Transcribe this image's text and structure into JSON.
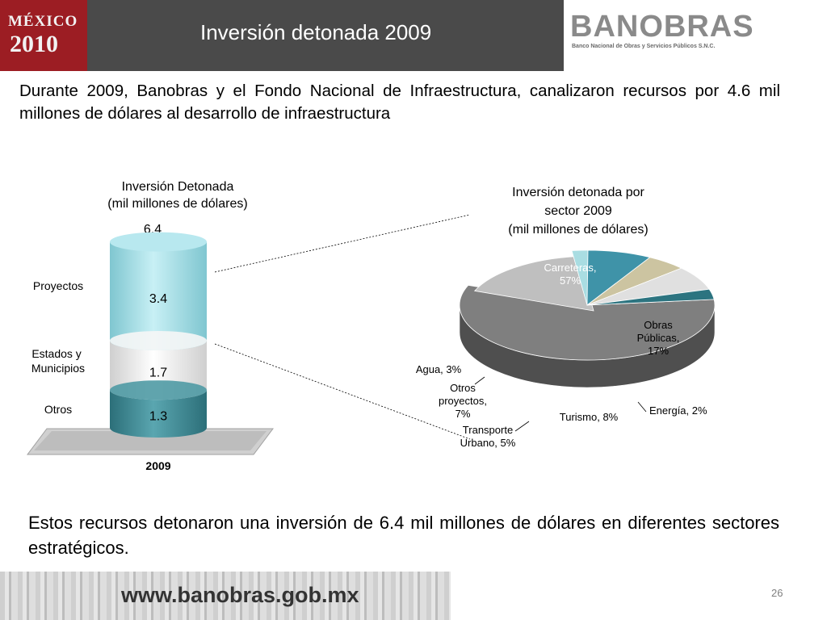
{
  "header": {
    "mexico_logo_line1": "MÉXICO",
    "mexico_logo_line2": "2010",
    "title": "Inversión detonada 2009",
    "banobras_logo_name": "BANOBRAS",
    "banobras_logo_sub": "Banco Nacional de Obras y Servicios Públicos S.N.C."
  },
  "intro_text": "Durante 2009, Banobras y el Fondo Nacional de Infraestructura, canalizaron recursos por 4.6 mil millones de dólares al desarrollo de infraestructura",
  "chart_data": [
    {
      "type": "bar",
      "stacked": true,
      "style": "3d-cylinder",
      "title": "Inversión Detonada",
      "subtitle": "(mil millones de dólares)",
      "categories": [
        "2009"
      ],
      "total": 6.4,
      "total_label": "6.4",
      "series": [
        {
          "name": "Otros",
          "values": [
            1.3
          ],
          "label": "1.3",
          "color": "#3e8b96"
        },
        {
          "name": "Estados y Municipios",
          "values": [
            1.7
          ],
          "label": "1.7",
          "color": "#ececec"
        },
        {
          "name": "Proyectos",
          "values": [
            3.4
          ],
          "label": "3.4",
          "color": "#9fdbe4"
        }
      ]
    },
    {
      "type": "pie",
      "style": "3d",
      "title_line1": "Inversión detonada por",
      "title_line2": "sector 2009",
      "subtitle": "(mil millones de dólares)",
      "slices": [
        {
          "name": "Carreteras",
          "value": 57,
          "color": "#7f7f7f",
          "label_lines": [
            "Carreteras,",
            "57%"
          ]
        },
        {
          "name": "Obras Públicas",
          "value": 17,
          "color": "#bfbfbf",
          "label_lines": [
            "Obras",
            "Públicas,",
            "17%"
          ]
        },
        {
          "name": "Energía",
          "value": 2,
          "color": "#a9dde2",
          "label_lines": [
            "Energía, 2%"
          ]
        },
        {
          "name": "Turismo",
          "value": 8,
          "color": "#3f93a8",
          "label_lines": [
            "Turismo, 8%"
          ]
        },
        {
          "name": "Transporte Urbano",
          "value": 5,
          "color": "#ccc4a1",
          "label_lines": [
            "Transporte",
            "Urbano, 5%"
          ]
        },
        {
          "name": "Otros proyectos",
          "value": 7,
          "color": "#e0e0e0",
          "label_lines": [
            "Otros",
            "proyectos,",
            "7%"
          ]
        },
        {
          "name": "Agua",
          "value": 3,
          "color": "#2c7480",
          "label_lines": [
            "Agua, 3%"
          ]
        }
      ]
    }
  ],
  "outro_text": "Estos recursos detonaron una inversión de 6.4 mil millones de dólares en diferentes sectores estratégicos.",
  "footer": {
    "url": "www.banobras.gob.mx"
  },
  "page_number": "26"
}
